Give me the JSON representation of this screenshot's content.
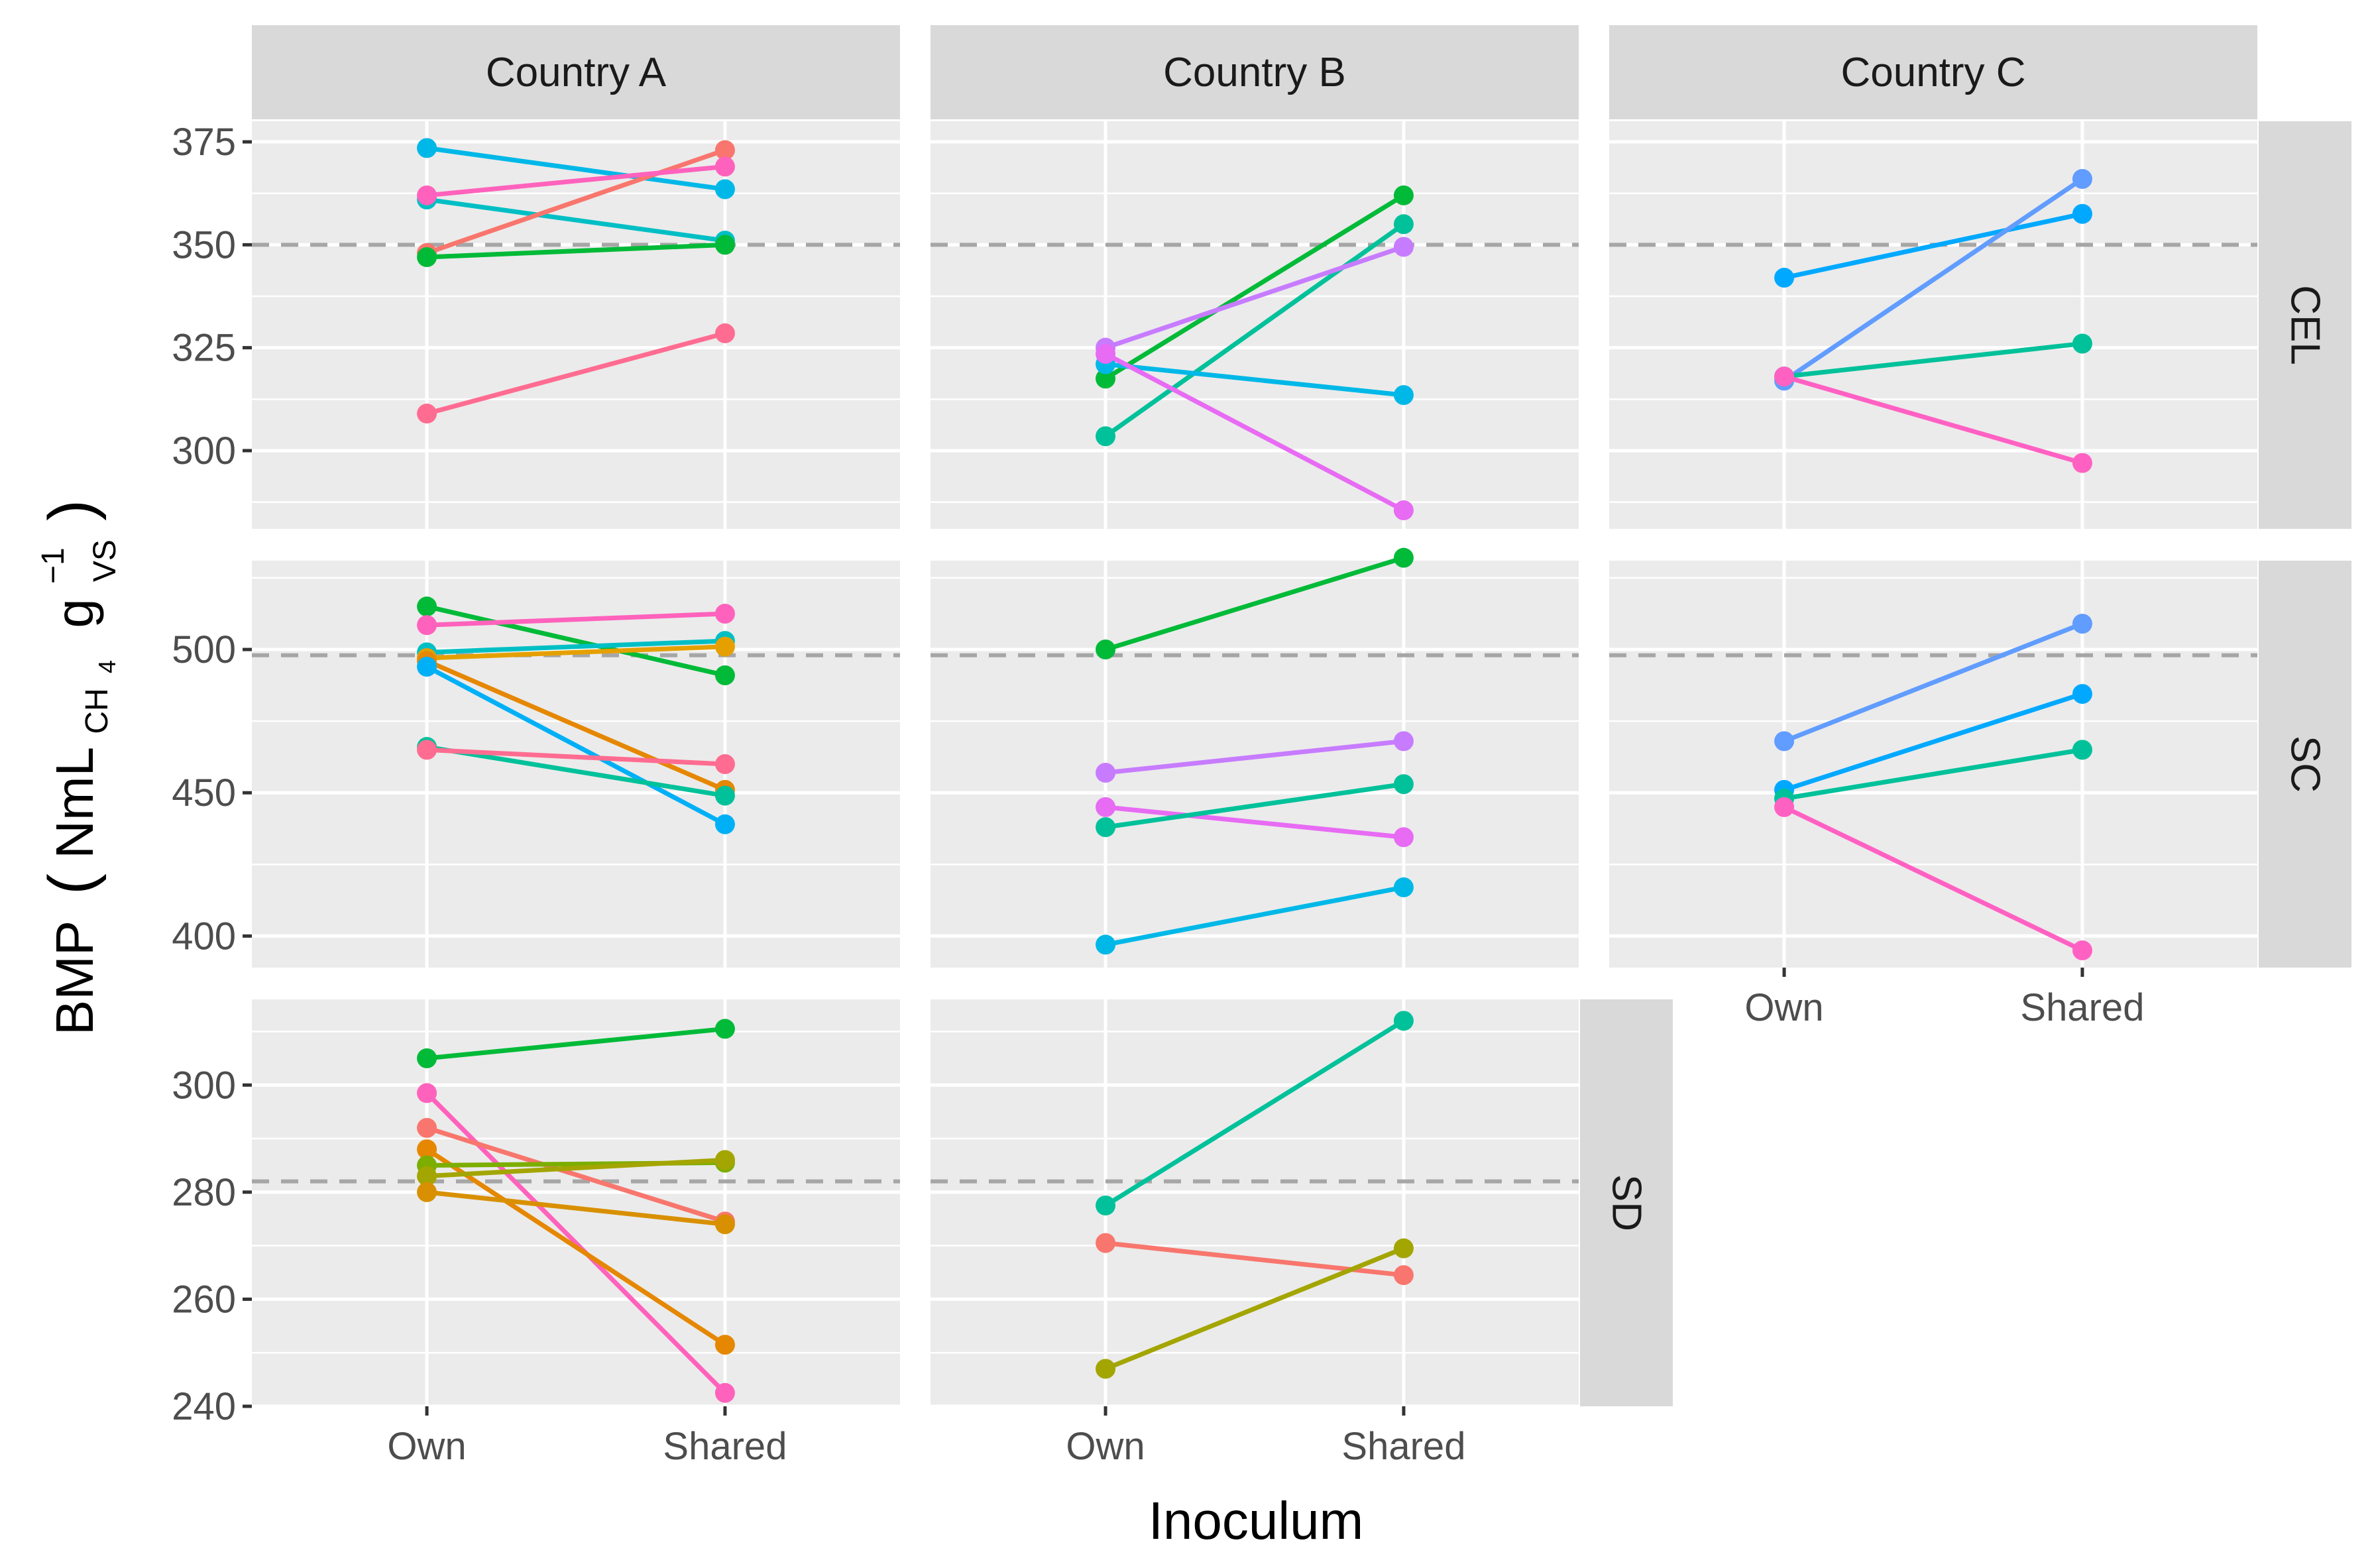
{
  "chart_data": {
    "type": "line",
    "xlabel": "Inoculum",
    "ylabel": {
      "main": "BMP",
      "unit_base": "NmL",
      "unit_sub": "CH",
      "unit_sub_digit": "4",
      "unit_g": "g",
      "unit_sup": "−1",
      "unit_sub2": "VS"
    },
    "x_categories": [
      "Own",
      "Shared"
    ],
    "col_facets": [
      "Country A",
      "Country B",
      "Country C"
    ],
    "row_facets": [
      {
        "label": "CEL",
        "ylim": [
          281,
          380
        ],
        "ticks": [
          300,
          325,
          350,
          375
        ],
        "tick_labels": [
          "300",
          "325",
          "350",
          "375"
        ],
        "minor_ticks": [
          287.5,
          312.5,
          337.5,
          362.5
        ],
        "reference": 350
      },
      {
        "label": "SC",
        "ylim": [
          389,
          531
        ],
        "ticks": [
          400,
          450,
          500
        ],
        "tick_labels": [
          "400",
          "450",
          "500"
        ],
        "minor_ticks": [
          425,
          475,
          525
        ],
        "reference": 498
      },
      {
        "label": "SD",
        "ylim": [
          240,
          316
        ],
        "ticks": [
          240,
          260,
          280,
          300
        ],
        "tick_labels": [
          "240",
          "260",
          "280",
          "300"
        ],
        "minor_ticks": [
          250,
          270,
          290,
          310
        ],
        "reference": 282
      }
    ],
    "panels": [
      {
        "row": 0,
        "col": 0,
        "series": [
          {
            "color": "#00B8E7",
            "values": [
              373.5,
              363.5
            ]
          },
          {
            "color": "#00BFC4",
            "values": [
              361,
              351
            ]
          },
          {
            "color": "#F8766D",
            "values": [
              348,
              373
            ]
          },
          {
            "color": "#FF62BC",
            "values": [
              362,
              369
            ]
          },
          {
            "color": "#00BA38",
            "values": [
              347,
              350
            ]
          },
          {
            "color": "#FF6C91",
            "values": [
              309,
              328.5
            ]
          }
        ]
      },
      {
        "row": 0,
        "col": 1,
        "series": [
          {
            "color": "#00BA38",
            "values": [
              317.5,
              362
            ]
          },
          {
            "color": "#00C19A",
            "values": [
              303.5,
              355
            ]
          },
          {
            "color": "#C77CFF",
            "values": [
              325,
              349.5
            ]
          },
          {
            "color": "#00B8E7",
            "values": [
              321,
              313.5
            ]
          },
          {
            "color": "#E76BF3",
            "values": [
              323.5,
              285.5
            ]
          }
        ]
      },
      {
        "row": 0,
        "col": 2,
        "series": [
          {
            "color": "#00A9FF",
            "values": [
              342,
              357.5
            ]
          },
          {
            "color": "#619CFF",
            "values": [
              317,
              366
            ]
          },
          {
            "color": "#00C19A",
            "values": [
              318,
              326
            ]
          },
          {
            "color": "#FF61C3",
            "values": [
              318,
              297
            ]
          }
        ]
      },
      {
        "row": 1,
        "col": 0,
        "series": [
          {
            "color": "#00BA38",
            "values": [
              515,
              491
            ]
          },
          {
            "color": "#FF62BC",
            "values": [
              508.5,
              512.5
            ]
          },
          {
            "color": "#00BFC4",
            "values": [
              499,
              503
            ]
          },
          {
            "color": "#E5A000",
            "values": [
              497,
              501
            ]
          },
          {
            "color": "#E58700",
            "values": [
              496,
              451
            ]
          },
          {
            "color": "#00B0F6",
            "values": [
              494,
              439
            ]
          },
          {
            "color": "#00C19A",
            "values": [
              466,
              449
            ]
          },
          {
            "color": "#FF6C91",
            "values": [
              465,
              460
            ]
          }
        ]
      },
      {
        "row": 1,
        "col": 1,
        "series": [
          {
            "color": "#00BA38",
            "values": [
              500,
              532
            ]
          },
          {
            "color": "#C77CFF",
            "values": [
              457,
              468
            ]
          },
          {
            "color": "#E76BF3",
            "values": [
              445,
              434.5
            ]
          },
          {
            "color": "#00C19A",
            "values": [
              438,
              453
            ]
          },
          {
            "color": "#00B8E7",
            "values": [
              397,
              417
            ]
          }
        ]
      },
      {
        "row": 1,
        "col": 2,
        "series": [
          {
            "color": "#619CFF",
            "values": [
              468,
              509
            ]
          },
          {
            "color": "#00A9FF",
            "values": [
              451,
              484.5
            ]
          },
          {
            "color": "#00C19A",
            "values": [
              448,
              465
            ]
          },
          {
            "color": "#FF61C3",
            "values": [
              445,
              395
            ]
          }
        ]
      },
      {
        "row": 2,
        "col": 0,
        "series": [
          {
            "color": "#00BA38",
            "values": [
              305,
              310.5
            ]
          },
          {
            "color": "#FF62BC",
            "values": [
              298.5,
              242.5
            ]
          },
          {
            "color": "#F8766D",
            "values": [
              292,
              274.5
            ]
          },
          {
            "color": "#E58700",
            "values": [
              288,
              251.5
            ]
          },
          {
            "color": "#7CAE00",
            "values": [
              285,
              285.5
            ]
          },
          {
            "color": "#A3A500",
            "values": [
              283,
              286
            ]
          },
          {
            "color": "#D89000",
            "values": [
              280,
              274
            ]
          }
        ]
      },
      {
        "row": 2,
        "col": 1,
        "series": [
          {
            "color": "#00C19A",
            "values": [
              277.5,
              312
            ]
          },
          {
            "color": "#F8766D",
            "values": [
              270.5,
              264.5
            ]
          },
          {
            "color": "#A3A500",
            "values": [
              247,
              269.5
            ]
          }
        ]
      }
    ]
  }
}
